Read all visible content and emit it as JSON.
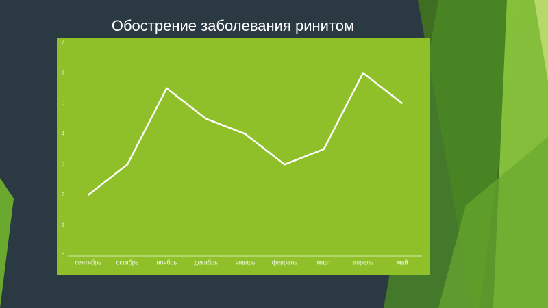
{
  "chart_data": {
    "type": "line",
    "title": "Обострение заболевания ринитом",
    "categories": [
      "сентябрь",
      "октябрь",
      "ноябрь",
      "декабрь",
      "январь",
      "февраль",
      "март",
      "апрель",
      "май"
    ],
    "values": [
      2,
      3,
      5.5,
      4.5,
      4,
      3,
      3.5,
      6,
      5
    ],
    "color": "#ffffff",
    "ylim": [
      0,
      7
    ],
    "yticks": [
      0,
      1,
      2,
      3,
      4,
      5,
      6,
      7
    ],
    "grid": false
  }
}
